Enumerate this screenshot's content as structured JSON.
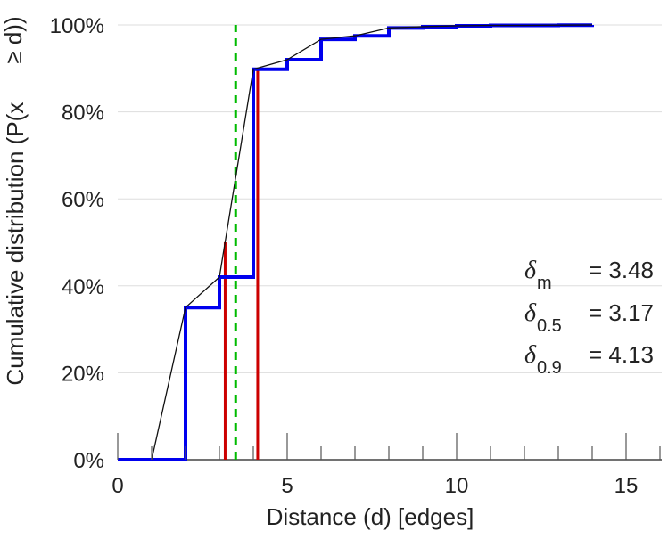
{
  "chart_data": {
    "type": "line",
    "xlabel": "Distance (d) [edges]",
    "ylabel": "Cumulative distribution (P(x ≥ d))",
    "xlim": [
      0,
      16
    ],
    "ylim": [
      0,
      1
    ],
    "x_ticks": [
      0,
      5,
      10,
      15
    ],
    "x_tick_labels": [
      "0",
      "5",
      "10",
      "15"
    ],
    "y_ticks": [
      0,
      0.2,
      0.4,
      0.6,
      0.8,
      1.0
    ],
    "y_tick_labels": [
      "0%",
      "20%",
      "40%",
      "60%",
      "80%",
      "100%"
    ],
    "x_minor_ticks": [
      1,
      2,
      3,
      4,
      6,
      7,
      8,
      9,
      11,
      12,
      13,
      14,
      16
    ],
    "grid": "horizontal",
    "series": [
      {
        "kind": "step",
        "color": "#0000ee",
        "x": [
          0,
          1,
          2,
          3,
          4,
          5,
          6,
          7,
          8,
          9,
          10,
          11,
          12,
          13,
          14
        ],
        "y": [
          0,
          0,
          0.35,
          0.42,
          0.898,
          0.92,
          0.967,
          0.975,
          0.993,
          0.996,
          0.998,
          0.999,
          0.999,
          0.9995,
          1.0
        ]
      },
      {
        "kind": "line",
        "color": "#111111",
        "x": [
          1,
          2,
          3,
          4,
          5,
          6,
          7,
          8,
          9,
          10,
          11,
          12,
          13,
          14
        ],
        "y": [
          0,
          0.35,
          0.42,
          0.898,
          0.92,
          0.967,
          0.975,
          0.993,
          0.996,
          0.998,
          0.999,
          0.999,
          0.9995,
          1.0
        ]
      }
    ],
    "vertical_lines": [
      {
        "x": 3.17,
        "y0": 0,
        "y1": 0.5,
        "color": "#cc0000",
        "style": "solid"
      },
      {
        "x": 4.13,
        "y0": 0,
        "y1": 0.9,
        "color": "#cc0000",
        "style": "solid"
      },
      {
        "x": 3.48,
        "y0": 0,
        "y1": 1.0,
        "color": "#00bb00",
        "style": "dashed"
      }
    ],
    "annotations": [
      {
        "symbol": "δ",
        "subscript": "m",
        "text": "= 3.48"
      },
      {
        "symbol": "δ",
        "subscript": "0.5",
        "text": "= 3.17"
      },
      {
        "symbol": "δ",
        "subscript": "0.9",
        "text": "= 4.13"
      }
    ]
  }
}
